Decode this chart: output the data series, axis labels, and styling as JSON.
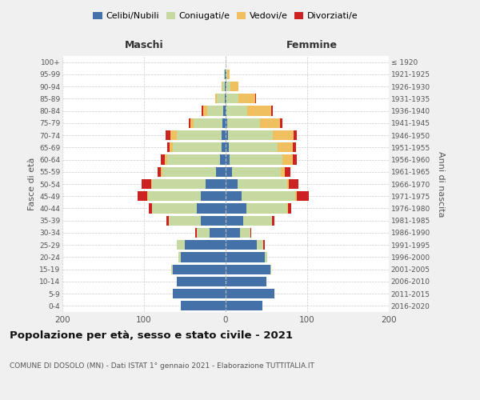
{
  "age_groups": [
    "0-4",
    "5-9",
    "10-14",
    "15-19",
    "20-24",
    "25-29",
    "30-34",
    "35-39",
    "40-44",
    "45-49",
    "50-54",
    "55-59",
    "60-64",
    "65-69",
    "70-74",
    "75-79",
    "80-84",
    "85-89",
    "90-94",
    "95-99",
    "100+"
  ],
  "birth_years": [
    "2016-2020",
    "2011-2015",
    "2006-2010",
    "2001-2005",
    "1996-2000",
    "1991-1995",
    "1986-1990",
    "1981-1985",
    "1976-1980",
    "1971-1975",
    "1966-1970",
    "1961-1965",
    "1956-1960",
    "1951-1955",
    "1946-1950",
    "1941-1945",
    "1936-1940",
    "1931-1935",
    "1926-1930",
    "1921-1925",
    "≤ 1920"
  ],
  "male": {
    "celibi": [
      55,
      65,
      60,
      65,
      55,
      50,
      20,
      30,
      35,
      30,
      25,
      12,
      7,
      5,
      5,
      4,
      3,
      1,
      1,
      1,
      0
    ],
    "coniugati": [
      0,
      0,
      0,
      2,
      3,
      10,
      15,
      40,
      55,
      65,
      65,
      65,
      65,
      60,
      55,
      35,
      20,
      10,
      3,
      1,
      0
    ],
    "vedovi": [
      0,
      0,
      0,
      0,
      0,
      0,
      0,
      0,
      0,
      1,
      1,
      2,
      3,
      4,
      8,
      4,
      4,
      2,
      1,
      0,
      0
    ],
    "divorziati": [
      0,
      0,
      0,
      0,
      0,
      0,
      2,
      3,
      4,
      12,
      12,
      4,
      4,
      3,
      6,
      2,
      2,
      0,
      0,
      0,
      0
    ]
  },
  "female": {
    "nubili": [
      45,
      60,
      50,
      55,
      48,
      38,
      18,
      22,
      25,
      20,
      15,
      8,
      5,
      4,
      3,
      2,
      1,
      1,
      1,
      1,
      0
    ],
    "coniugate": [
      0,
      0,
      0,
      1,
      3,
      8,
      12,
      35,
      50,
      65,
      60,
      60,
      65,
      60,
      55,
      40,
      25,
      15,
      5,
      1,
      0
    ],
    "vedove": [
      0,
      0,
      0,
      0,
      0,
      0,
      0,
      0,
      1,
      2,
      2,
      5,
      12,
      18,
      25,
      25,
      30,
      20,
      10,
      3,
      0
    ],
    "divorziate": [
      0,
      0,
      0,
      0,
      0,
      2,
      1,
      3,
      4,
      15,
      12,
      6,
      5,
      4,
      4,
      3,
      2,
      1,
      0,
      0,
      0
    ]
  },
  "colors": {
    "celibi": "#4472a8",
    "coniugati": "#c5d9a0",
    "vedovi": "#f0c060",
    "divorziati": "#cc2222"
  },
  "xlim": 200,
  "title": "Popolazione per età, sesso e stato civile - 2021",
  "subtitle": "COMUNE DI DOSOLO (MN) - Dati ISTAT 1° gennaio 2021 - Elaborazione TUTTITALIA.IT",
  "ylabel_left": "Fasce di età",
  "ylabel_right": "Anni di nascita",
  "xlabel_left": "Maschi",
  "xlabel_right": "Femmine",
  "legend_labels": [
    "Celibi/Nubili",
    "Coniugati/e",
    "Vedovi/e",
    "Divorziati/e"
  ],
  "bg_color": "#f0f0f0",
  "plot_bg": "#ffffff"
}
